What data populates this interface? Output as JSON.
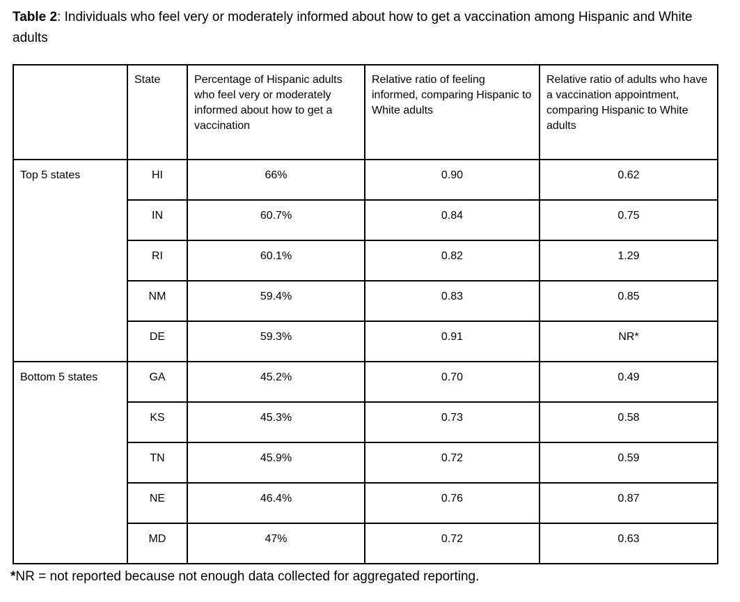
{
  "title": {
    "prefix": "Table 2",
    "rest": ": Individuals who feel very or moderately informed about how to get a vaccination among Hispanic and White adults"
  },
  "table": {
    "headers": {
      "group": "",
      "state": "State",
      "percentage": "Percentage of Hispanic adults who feel very or moderately informed about how to get a vaccination",
      "ratio_informed": "Relative ratio of feeling informed, comparing Hispanic to White adults",
      "ratio_appointment": "Relative ratio of adults who have a vaccination appointment, comparing Hispanic to White adults"
    },
    "groups": [
      {
        "label": "Top 5 states",
        "rows": [
          {
            "state": "HI",
            "percentage": "66%",
            "ratio_informed": "0.90",
            "ratio_appointment": "0.62"
          },
          {
            "state": "IN",
            "percentage": "60.7%",
            "ratio_informed": "0.84",
            "ratio_appointment": "0.75"
          },
          {
            "state": "RI",
            "percentage": "60.1%",
            "ratio_informed": "0.82",
            "ratio_appointment": "1.29"
          },
          {
            "state": "NM",
            "percentage": "59.4%",
            "ratio_informed": "0.83",
            "ratio_appointment": "0.85"
          },
          {
            "state": "DE",
            "percentage": "59.3%",
            "ratio_informed": "0.91",
            "ratio_appointment": "NR*"
          }
        ]
      },
      {
        "label": "Bottom 5 states",
        "rows": [
          {
            "state": "GA",
            "percentage": "45.2%",
            "ratio_informed": "0.70",
            "ratio_appointment": "0.49"
          },
          {
            "state": "KS",
            "percentage": "45.3%",
            "ratio_informed": "0.73",
            "ratio_appointment": "0.58"
          },
          {
            "state": "TN",
            "percentage": "45.9%",
            "ratio_informed": "0.72",
            "ratio_appointment": "0.59"
          },
          {
            "state": "NE",
            "percentage": "46.4%",
            "ratio_informed": "0.76",
            "ratio_appointment": "0.87"
          },
          {
            "state": "MD",
            "percentage": "47%",
            "ratio_informed": "0.72",
            "ratio_appointment": "0.63"
          }
        ]
      }
    ]
  },
  "footnote": {
    "marker": "*",
    "text": "NR = not reported because not enough data collected for aggregated reporting."
  },
  "colors": {
    "text": "#000000",
    "border": "#000000",
    "background": "#ffffff"
  }
}
